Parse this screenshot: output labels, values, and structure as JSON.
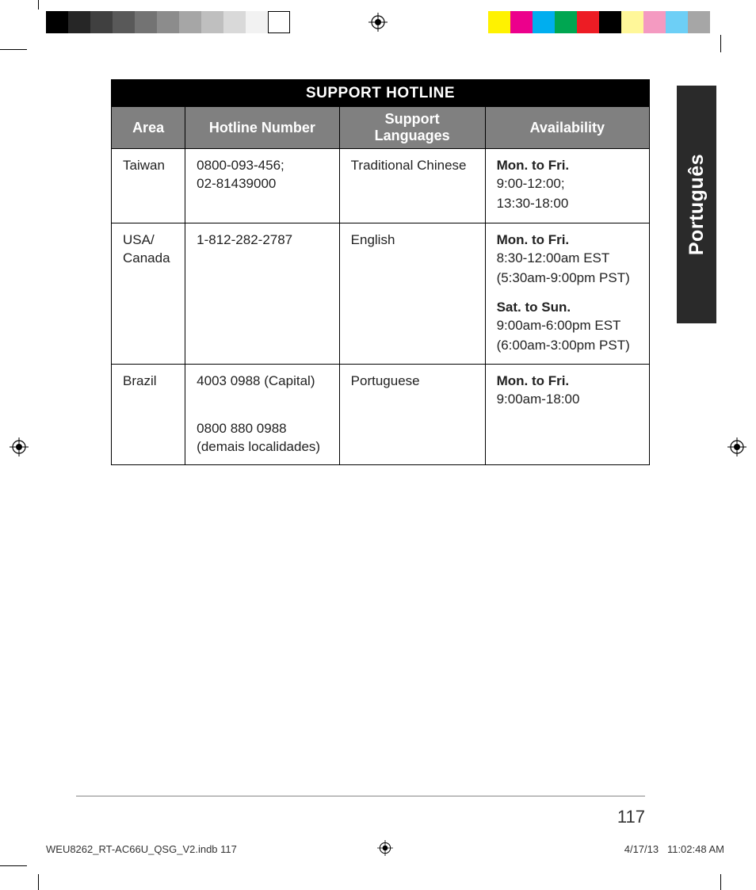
{
  "print_marks": {
    "gray_swatches": [
      "#000000",
      "#262626",
      "#404040",
      "#595959",
      "#737373",
      "#8c8c8c",
      "#a6a6a6",
      "#bfbfbf",
      "#d9d9d9",
      "#f2f2f2",
      "#ffffff"
    ],
    "gray_swatches_border": "#000000",
    "color_swatches": [
      "#fff200",
      "#ec008c",
      "#00aeef",
      "#00a651",
      "#ed1c24",
      "#000000",
      "#fff799",
      "#f49ac1",
      "#6dcff6",
      "#a6a6a6"
    ]
  },
  "language_tab": "Português",
  "table": {
    "title": "SUPPORT HOTLINE",
    "headers": [
      "Area",
      "Hotline Number",
      "Support Languages",
      "Availability"
    ],
    "rows": [
      {
        "area": "Taiwan",
        "hotline": [
          "0800-093-456;",
          "02-81439000"
        ],
        "languages": "Traditional Chinese",
        "availability": [
          {
            "label": "Mon. to Fri.",
            "lines": [
              "9:00-12:00;",
              "13:30-18:00"
            ]
          }
        ]
      },
      {
        "area": "USA/Canada",
        "hotline": [
          "1-812-282-2787"
        ],
        "languages": "English",
        "availability": [
          {
            "label": "Mon. to Fri.",
            "lines": [
              "8:30-12:00am EST",
              "(5:30am-9:00pm PST)"
            ]
          },
          {
            "label": "Sat. to Sun.",
            "lines": [
              "9:00am-6:00pm EST",
              "(6:00am-3:00pm PST)"
            ]
          }
        ]
      },
      {
        "area": "Brazil",
        "hotline": [
          "4003 0988 (Capital)",
          "",
          "0800 880 0988",
          "(demais localidades)"
        ],
        "languages": "Portuguese",
        "availability": [
          {
            "label": "Mon. to Fri.",
            "lines": [
              "9:00am-18:00"
            ]
          }
        ]
      }
    ]
  },
  "page_number": "117",
  "slug": {
    "file": "WEU8262_RT-AC66U_QSG_V2.indb   117",
    "date": "4/17/13",
    "time": "11:02:48 AM"
  }
}
